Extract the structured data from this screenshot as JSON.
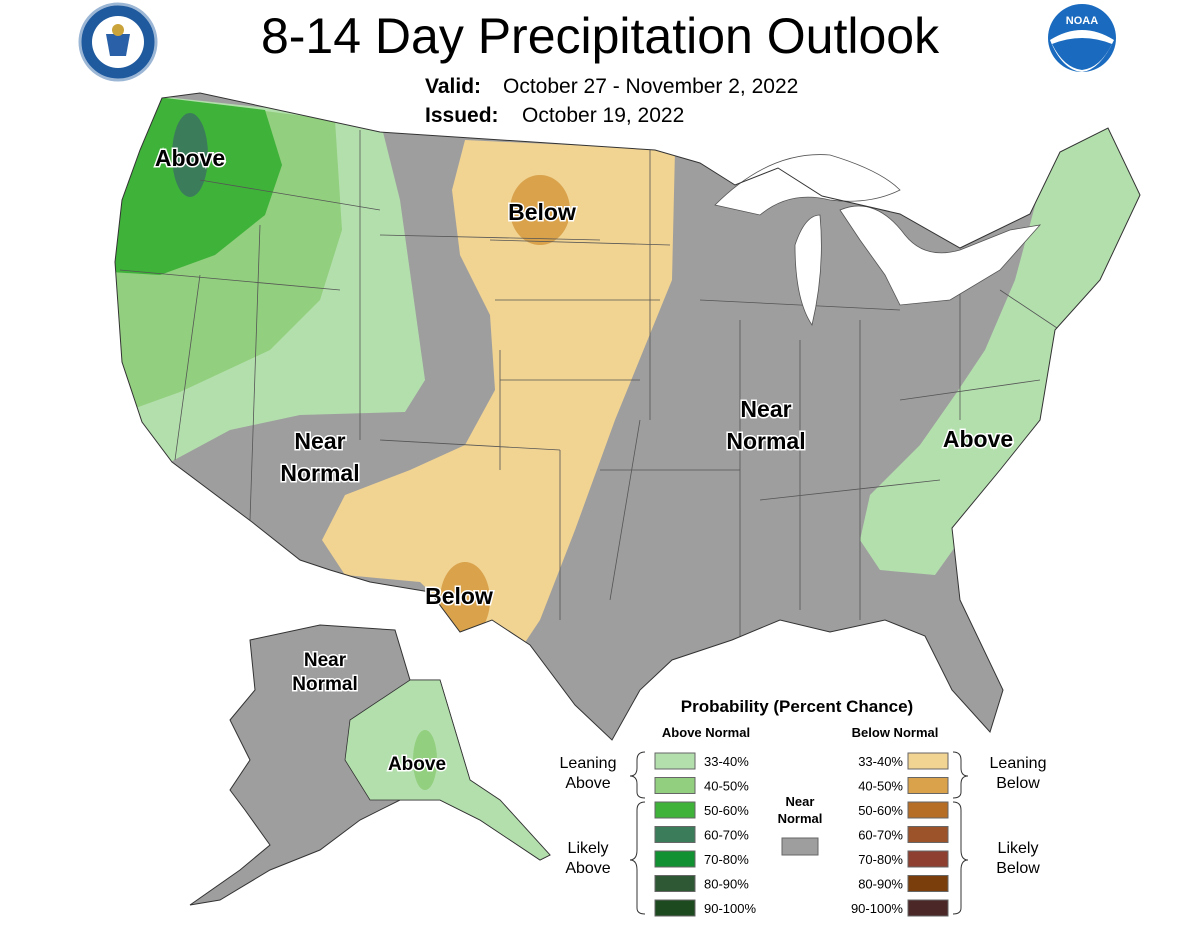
{
  "header": {
    "title": "8-14 Day Precipitation Outlook",
    "valid_label": "Valid:",
    "valid": "October 27 - November 2, 2022",
    "issued_label": "Issued:",
    "issued": "October 19, 2022",
    "logo": "NOAA"
  },
  "map_labels": [
    {
      "lines": [
        "Above"
      ]
    },
    {
      "lines": [
        "Below"
      ]
    },
    {
      "lines": [
        "Near",
        "Normal"
      ]
    },
    {
      "lines": [
        "Below"
      ]
    },
    {
      "lines": [
        "Near",
        "Normal"
      ]
    },
    {
      "lines": [
        "Above"
      ]
    },
    {
      "lines": [
        "Near",
        "Normal"
      ]
    },
    {
      "lines": [
        "Above"
      ]
    }
  ],
  "legend": {
    "title": "Probability (Percent Chance)",
    "above_heading": "Above Normal",
    "below_heading": "Below Normal",
    "above": [
      {
        "range": "33-40%",
        "color": "#b3dfad"
      },
      {
        "range": "40-50%",
        "color": "#92cf7e"
      },
      {
        "range": "50-60%",
        "color": "#3fb23a"
      },
      {
        "range": "60-70%",
        "color": "#3b7d5b"
      },
      {
        "range": "70-80%",
        "color": "#129133"
      },
      {
        "range": "80-90%",
        "color": "#2e5834"
      },
      {
        "range": "90-100%",
        "color": "#1d4a1e"
      }
    ],
    "below": [
      {
        "range": "33-40%",
        "color": "#f1d392"
      },
      {
        "range": "40-50%",
        "color": "#d9a24b"
      },
      {
        "range": "50-60%",
        "color": "#b66e26"
      },
      {
        "range": "60-70%",
        "color": "#9c532a"
      },
      {
        "range": "70-80%",
        "color": "#8e3f2f"
      },
      {
        "range": "80-90%",
        "color": "#7a3e0c"
      },
      {
        "range": "90-100%",
        "color": "#4b2727"
      }
    ],
    "near_normal": {
      "lines": [
        "Near",
        "Normal"
      ],
      "color": "#9e9e9e"
    },
    "leaning_above": [
      "Leaning",
      "Above"
    ],
    "likely_above": [
      "Likely",
      "Above"
    ],
    "leaning_below": [
      "Leaning",
      "Below"
    ],
    "likely_below": [
      "Likely",
      "Below"
    ]
  }
}
